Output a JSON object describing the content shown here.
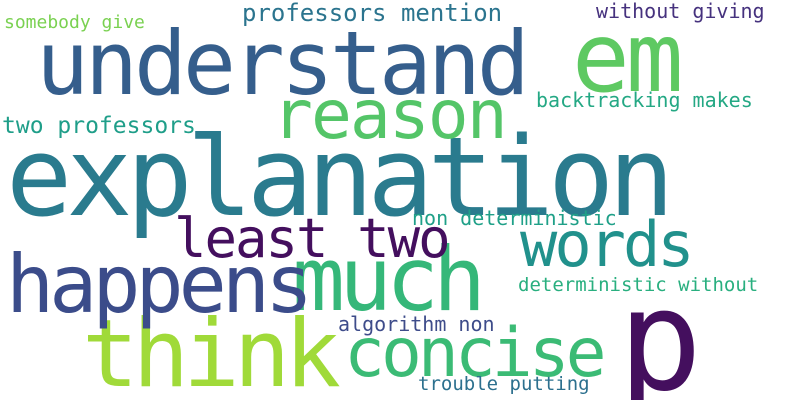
{
  "words": [
    {
      "id": "explanation",
      "text": "explanation",
      "color": "#2a7b8e"
    },
    {
      "id": "understand",
      "text": "understand",
      "color": "#355e8c"
    },
    {
      "id": "em",
      "text": "em",
      "color": "#5ec962"
    },
    {
      "id": "reason",
      "text": "reason",
      "color": "#54c568"
    },
    {
      "id": "p",
      "text": "p",
      "color": "#440f5e"
    },
    {
      "id": "much",
      "text": "much",
      "color": "#35b779"
    },
    {
      "id": "think",
      "text": "think",
      "color": "#a0da39"
    },
    {
      "id": "happens",
      "text": "happens",
      "color": "#3b4c8a"
    },
    {
      "id": "concise",
      "text": "concise",
      "color": "#3bbb75"
    },
    {
      "id": "words",
      "text": "words",
      "color": "#21918c"
    },
    {
      "id": "least-two",
      "text": "least two",
      "color": "#440f5e"
    },
    {
      "id": "professors-mention",
      "text": "professors mention",
      "color": "#2b748e"
    },
    {
      "id": "backtracking-makes",
      "text": "backtracking makes",
      "color": "#24a884"
    },
    {
      "id": "two-professors",
      "text": "two professors",
      "color": "#1f9e89"
    },
    {
      "id": "non-deterministic",
      "text": "non deterministic",
      "color": "#1fa088"
    },
    {
      "id": "deterministic-without",
      "text": "deterministic without",
      "color": "#29af7f"
    },
    {
      "id": "without-giving",
      "text": "without giving",
      "color": "#46327e"
    },
    {
      "id": "somebody-give",
      "text": "somebody give",
      "color": "#7ad151"
    },
    {
      "id": "algorithm-non",
      "text": "algorithm non",
      "color": "#3e4c8a"
    },
    {
      "id": "trouble-putting",
      "text": "trouble putting",
      "color": "#2c708e"
    }
  ]
}
